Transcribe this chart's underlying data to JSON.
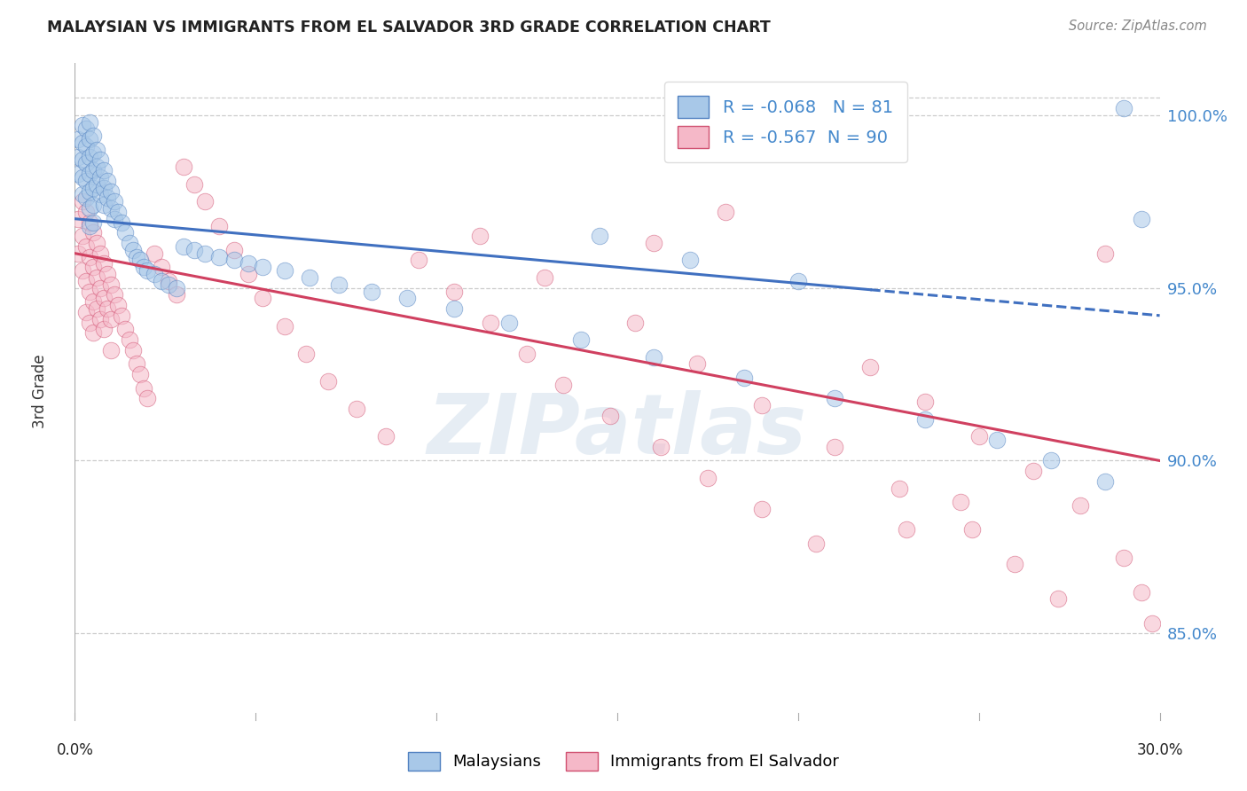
{
  "title": "MALAYSIAN VS IMMIGRANTS FROM EL SALVADOR 3RD GRADE CORRELATION CHART",
  "source": "Source: ZipAtlas.com",
  "ylabel": "3rd Grade",
  "xlim": [
    0.0,
    0.3
  ],
  "ylim": [
    0.825,
    1.015
  ],
  "yticks_right": [
    0.85,
    0.9,
    0.95,
    1.0
  ],
  "ytick_labels_right": [
    "85.0%",
    "90.0%",
    "95.0%",
    "100.0%"
  ],
  "blue_R": -0.068,
  "blue_N": 81,
  "pink_R": -0.567,
  "pink_N": 90,
  "blue_color": "#a8c8e8",
  "pink_color": "#f5b8c8",
  "blue_edge_color": "#5080c0",
  "pink_edge_color": "#d05070",
  "blue_line_color": "#4070c0",
  "pink_line_color": "#d04060",
  "watermark": "ZIPatlas",
  "legend_label_blue": "Malaysians",
  "legend_label_pink": "Immigrants from El Salvador",
  "blue_line_x0": 0.0,
  "blue_line_y0": 0.97,
  "blue_line_x1": 0.3,
  "blue_line_y1": 0.942,
  "pink_line_x0": 0.0,
  "pink_line_y0": 0.96,
  "pink_line_x1": 0.3,
  "pink_line_y1": 0.9,
  "blue_scatter_x": [
    0.001,
    0.001,
    0.001,
    0.002,
    0.002,
    0.002,
    0.002,
    0.002,
    0.003,
    0.003,
    0.003,
    0.003,
    0.003,
    0.004,
    0.004,
    0.004,
    0.004,
    0.004,
    0.004,
    0.004,
    0.005,
    0.005,
    0.005,
    0.005,
    0.005,
    0.005,
    0.006,
    0.006,
    0.006,
    0.007,
    0.007,
    0.007,
    0.008,
    0.008,
    0.008,
    0.009,
    0.009,
    0.01,
    0.01,
    0.011,
    0.011,
    0.012,
    0.013,
    0.014,
    0.015,
    0.016,
    0.017,
    0.018,
    0.019,
    0.02,
    0.022,
    0.024,
    0.026,
    0.028,
    0.03,
    0.033,
    0.036,
    0.04,
    0.044,
    0.048,
    0.052,
    0.058,
    0.065,
    0.073,
    0.082,
    0.092,
    0.105,
    0.12,
    0.14,
    0.16,
    0.185,
    0.21,
    0.235,
    0.255,
    0.27,
    0.285,
    0.295,
    0.145,
    0.17,
    0.2,
    0.29
  ],
  "blue_scatter_y": [
    0.993,
    0.988,
    0.983,
    0.997,
    0.992,
    0.987,
    0.982,
    0.977,
    0.996,
    0.991,
    0.986,
    0.981,
    0.976,
    0.998,
    0.993,
    0.988,
    0.983,
    0.978,
    0.973,
    0.968,
    0.994,
    0.989,
    0.984,
    0.979,
    0.974,
    0.969,
    0.99,
    0.985,
    0.98,
    0.987,
    0.982,
    0.977,
    0.984,
    0.979,
    0.974,
    0.981,
    0.976,
    0.978,
    0.973,
    0.975,
    0.97,
    0.972,
    0.969,
    0.966,
    0.963,
    0.961,
    0.959,
    0.958,
    0.956,
    0.955,
    0.954,
    0.952,
    0.951,
    0.95,
    0.962,
    0.961,
    0.96,
    0.959,
    0.958,
    0.957,
    0.956,
    0.955,
    0.953,
    0.951,
    0.949,
    0.947,
    0.944,
    0.94,
    0.935,
    0.93,
    0.924,
    0.918,
    0.912,
    0.906,
    0.9,
    0.894,
    0.97,
    0.965,
    0.958,
    0.952,
    1.002
  ],
  "pink_scatter_x": [
    0.001,
    0.001,
    0.002,
    0.002,
    0.002,
    0.003,
    0.003,
    0.003,
    0.003,
    0.004,
    0.004,
    0.004,
    0.004,
    0.005,
    0.005,
    0.005,
    0.005,
    0.006,
    0.006,
    0.006,
    0.007,
    0.007,
    0.007,
    0.008,
    0.008,
    0.008,
    0.009,
    0.009,
    0.01,
    0.01,
    0.01,
    0.011,
    0.012,
    0.013,
    0.014,
    0.015,
    0.016,
    0.017,
    0.018,
    0.019,
    0.02,
    0.022,
    0.024,
    0.026,
    0.028,
    0.03,
    0.033,
    0.036,
    0.04,
    0.044,
    0.048,
    0.052,
    0.058,
    0.064,
    0.07,
    0.078,
    0.086,
    0.095,
    0.105,
    0.115,
    0.125,
    0.135,
    0.148,
    0.162,
    0.175,
    0.19,
    0.205,
    0.22,
    0.235,
    0.25,
    0.265,
    0.278,
    0.112,
    0.13,
    0.155,
    0.172,
    0.19,
    0.21,
    0.228,
    0.248,
    0.26,
    0.272,
    0.285,
    0.29,
    0.295,
    0.298,
    0.18,
    0.16,
    0.245,
    0.23
  ],
  "pink_scatter_y": [
    0.97,
    0.96,
    0.975,
    0.965,
    0.955,
    0.972,
    0.962,
    0.952,
    0.943,
    0.969,
    0.959,
    0.949,
    0.94,
    0.966,
    0.956,
    0.946,
    0.937,
    0.963,
    0.953,
    0.944,
    0.96,
    0.95,
    0.941,
    0.957,
    0.947,
    0.938,
    0.954,
    0.944,
    0.951,
    0.941,
    0.932,
    0.948,
    0.945,
    0.942,
    0.938,
    0.935,
    0.932,
    0.928,
    0.925,
    0.921,
    0.918,
    0.96,
    0.956,
    0.952,
    0.948,
    0.985,
    0.98,
    0.975,
    0.968,
    0.961,
    0.954,
    0.947,
    0.939,
    0.931,
    0.923,
    0.915,
    0.907,
    0.958,
    0.949,
    0.94,
    0.931,
    0.922,
    0.913,
    0.904,
    0.895,
    0.886,
    0.876,
    0.927,
    0.917,
    0.907,
    0.897,
    0.887,
    0.965,
    0.953,
    0.94,
    0.928,
    0.916,
    0.904,
    0.892,
    0.88,
    0.87,
    0.86,
    0.96,
    0.872,
    0.862,
    0.853,
    0.972,
    0.963,
    0.888,
    0.88
  ]
}
